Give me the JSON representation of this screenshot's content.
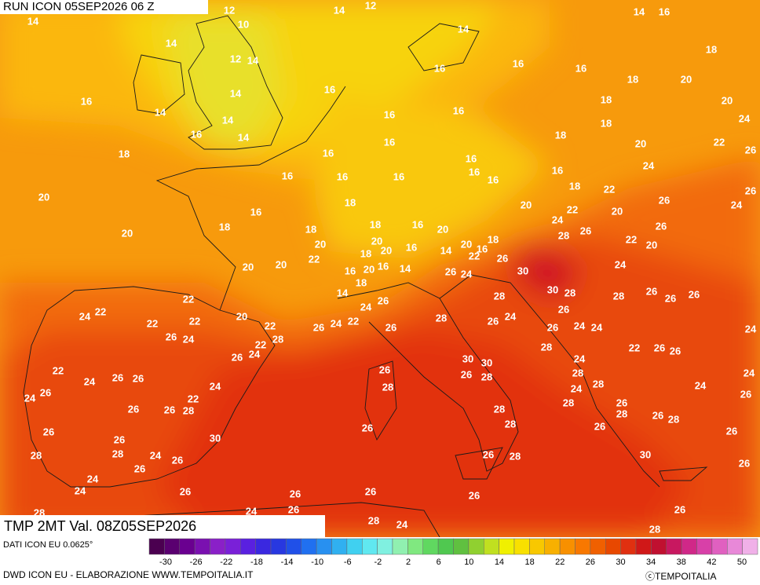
{
  "header": {
    "run": "RUN ICON 05SEP2026 06 Z"
  },
  "footer": {
    "valid": "TMP 2MT Val. 08Z05SEP2026",
    "source": "DATI ICON EU 0.0625°",
    "credit": "DWD ICON EU - ELABORAZIONE WWW.TEMPOITALIA.IT",
    "copyright": "ⓒTEMPOITALIA"
  },
  "colorbar": {
    "labels": [
      -30,
      -26,
      -22,
      -18,
      -14,
      -10,
      -6,
      -2,
      2,
      6,
      10,
      14,
      18,
      22,
      26,
      30,
      34,
      38,
      42,
      50
    ],
    "colors": [
      "#4b0050",
      "#5a0070",
      "#6a0090",
      "#7a10b0",
      "#8a20c8",
      "#7a20d8",
      "#5a20e0",
      "#3a28e0",
      "#2838e0",
      "#2050e8",
      "#2070f0",
      "#2890f0",
      "#30b0f0",
      "#40d0f0",
      "#60e8f0",
      "#80f0e0",
      "#90f0b0",
      "#80e880",
      "#60d860",
      "#50c850",
      "#60c040",
      "#90d030",
      "#c0e020",
      "#f0f000",
      "#f8e000",
      "#f8c800",
      "#f8b000",
      "#f89000",
      "#f87800",
      "#f06000",
      "#e84800",
      "#e03010",
      "#d01818",
      "#c01030",
      "#c81860",
      "#d02888",
      "#d840a8",
      "#e060c0",
      "#e888d8",
      "#f0b0e8"
    ]
  },
  "map_labels": [
    14,
    12,
    14,
    12,
    10,
    14,
    12,
    14,
    14,
    14,
    16,
    18,
    16,
    16,
    16,
    18,
    20,
    16,
    14,
    14,
    16,
    16,
    16,
    18,
    20,
    24,
    14,
    16,
    14,
    18,
    16,
    16,
    18,
    18,
    22,
    26,
    20,
    16,
    16,
    16,
    16,
    16,
    16,
    16,
    24,
    20,
    18,
    18,
    22,
    26,
    24,
    26,
    20,
    16,
    24,
    22,
    20,
    20,
    18,
    18,
    18,
    16,
    20,
    28,
    26,
    26,
    20,
    20,
    20,
    16,
    18,
    22,
    20,
    20,
    20,
    22,
    18,
    20,
    16,
    14,
    22,
    26,
    24,
    16,
    20,
    16,
    14,
    26,
    24,
    30,
    18,
    22,
    14,
    24,
    26,
    28,
    30,
    28,
    28,
    26,
    26,
    26,
    22,
    24,
    20,
    22,
    22,
    22,
    26,
    24,
    22,
    26,
    28,
    26,
    24,
    26,
    26,
    24,
    24,
    24,
    26,
    24,
    28,
    22,
    26,
    24,
    28,
    22,
    26,
    26,
    30,
    30,
    24,
    22,
    26,
    26,
    28,
    28,
    24,
    24,
    26,
    26,
    24,
    28,
    28,
    24,
    26,
    24,
    22,
    24,
    26,
    26,
    26,
    28,
    28,
    28,
    26,
    26,
    26,
    28,
    26,
    28,
    26,
    28,
    26,
    30,
    26,
    28,
    28,
    24,
    26,
    26,
    28,
    30,
    26,
    26,
    24,
    24,
    26,
    26,
    26,
    26,
    28,
    24,
    26,
    26,
    28,
    24,
    28,
    28
  ]
}
